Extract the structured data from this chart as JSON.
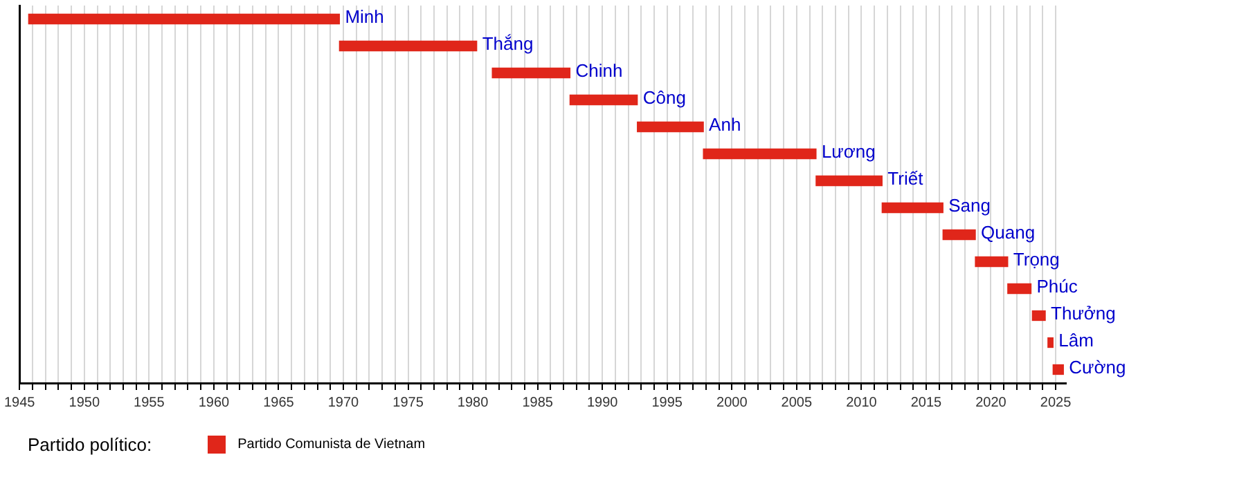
{
  "chart_data": {
    "type": "bar",
    "orientation": "horizontal",
    "legend_title": "Partido político:",
    "legend": "bottom left",
    "categories": [
      "Minh",
      "Thắng",
      "Chinh",
      "Công",
      "Anh",
      "Lương",
      "Triết",
      "Sang",
      "Quang",
      "Trọng",
      "Phúc",
      "Thưởng",
      "Lâm",
      "Cường"
    ],
    "series": [
      {
        "name": "Partido Comunista de Vietnam",
        "color": "#e0261a",
        "base": [
          1945.7,
          1969.7,
          1981.5,
          1987.5,
          1992.7,
          1997.8,
          2006.5,
          2011.6,
          2016.3,
          2018.8,
          2021.3,
          2023.2,
          2024.4,
          2024.8
        ],
        "values": [
          24.0,
          10.6,
          6.0,
          5.2,
          5.1,
          8.7,
          5.1,
          4.7,
          2.5,
          2.5,
          1.8,
          1.0,
          0.4,
          0.8
        ]
      }
    ],
    "xlim": [
      1945,
      2025.8
    ],
    "xticks": [
      1945,
      {
        "value": 1946,
        "label": null
      },
      {
        "value": 1947,
        "label": null
      },
      {
        "value": 1948,
        "label": null
      },
      {
        "value": 1949,
        "label": null
      },
      1950,
      {
        "value": 1951,
        "label": null
      },
      {
        "value": 1952,
        "label": null
      },
      {
        "value": 1953,
        "label": null
      },
      {
        "value": 1954,
        "label": null
      },
      1955,
      {
        "value": 1956,
        "label": null
      },
      {
        "value": 1957,
        "label": null
      },
      {
        "value": 1958,
        "label": null
      },
      {
        "value": 1959,
        "label": null
      },
      1960,
      {
        "value": 1961,
        "label": null
      },
      {
        "value": 1962,
        "label": null
      },
      {
        "value": 1963,
        "label": null
      },
      {
        "value": 1964,
        "label": null
      },
      1965,
      {
        "value": 1966,
        "label": null
      },
      {
        "value": 1967,
        "label": null
      },
      {
        "value": 1968,
        "label": null
      },
      {
        "value": 1969,
        "label": null
      },
      1970,
      {
        "value": 1971,
        "label": null
      },
      {
        "value": 1972,
        "label": null
      },
      {
        "value": 1973,
        "label": null
      },
      {
        "value": 1974,
        "label": null
      },
      1975,
      {
        "value": 1976,
        "label": null
      },
      {
        "value": 1977,
        "label": null
      },
      {
        "value": 1978,
        "label": null
      },
      {
        "value": 1979,
        "label": null
      },
      1980,
      {
        "value": 1981,
        "label": null
      },
      {
        "value": 1982,
        "label": null
      },
      {
        "value": 1983,
        "label": null
      },
      {
        "value": 1984,
        "label": null
      },
      1985,
      {
        "value": 1986,
        "label": null
      },
      {
        "value": 1987,
        "label": null
      },
      {
        "value": 1988,
        "label": null
      },
      {
        "value": 1989,
        "label": null
      },
      1990,
      {
        "value": 1991,
        "label": null
      },
      {
        "value": 1992,
        "label": null
      },
      {
        "value": 1993,
        "label": null
      },
      {
        "value": 1994,
        "label": null
      },
      1995,
      {
        "value": 1996,
        "label": null
      },
      {
        "value": 1997,
        "label": null
      },
      {
        "value": 1998,
        "label": null
      },
      {
        "value": 1999,
        "label": null
      },
      2000,
      {
        "value": 2001,
        "label": null
      },
      {
        "value": 2002,
        "label": null
      },
      {
        "value": 2003,
        "label": null
      },
      {
        "value": 2004,
        "label": null
      },
      2005,
      {
        "value": 2006,
        "label": null
      },
      {
        "value": 2007,
        "label": null
      },
      {
        "value": 2008,
        "label": null
      },
      {
        "value": 2009,
        "label": null
      },
      2010,
      {
        "value": 2011,
        "label": null
      },
      {
        "value": 2012,
        "label": null
      },
      {
        "value": 2013,
        "label": null
      },
      {
        "value": 2014,
        "label": null
      },
      2015,
      {
        "value": 2016,
        "label": null
      },
      {
        "value": 2017,
        "label": null
      },
      {
        "value": 2018,
        "label": null
      },
      {
        "value": 2019,
        "label": null
      },
      2020,
      {
        "value": 2021,
        "label": null
      },
      {
        "value": 2022,
        "label": null
      },
      {
        "value": 2023,
        "label": null
      },
      {
        "value": 2024,
        "label": null
      },
      2025
    ],
    "grid": "x",
    "tick_labels": "x"
  }
}
